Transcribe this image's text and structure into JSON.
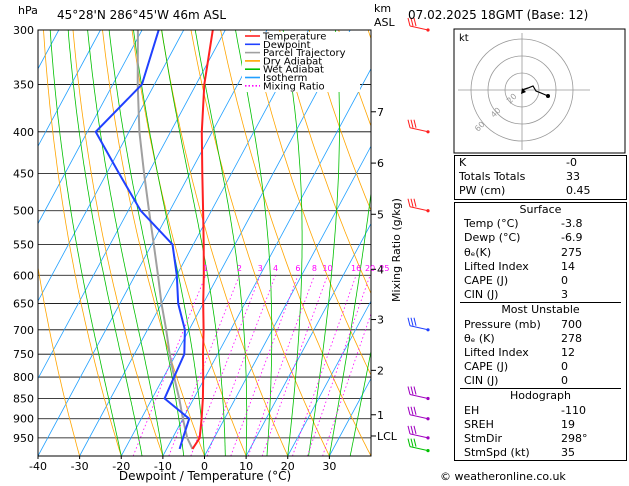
{
  "header": {
    "location": "45°28'N  286°45'W  46m  ASL",
    "datetime": "07.02.2025  18GMT  (Base: 12)",
    "hpa_label": "hPa",
    "km_label": "km",
    "asl_label": "ASL"
  },
  "chart_data": {
    "type": "skew-t",
    "xlabel": "Dewpoint / Temperature (°C)",
    "ylabel": "Mixing Ratio (g/kg)",
    "x_range": [
      -40,
      40
    ],
    "x_ticks": [
      -40,
      -30,
      -20,
      -10,
      0,
      10,
      20,
      30
    ],
    "pressure_range": [
      300,
      1000
    ],
    "pressure_ticks": [
      300,
      350,
      400,
      450,
      500,
      550,
      600,
      650,
      700,
      750,
      800,
      850,
      900,
      950
    ],
    "km_ticks": [
      {
        "label": "7",
        "p": 378
      },
      {
        "label": "6",
        "p": 437
      },
      {
        "label": "5",
        "p": 505
      },
      {
        "label": "4",
        "p": 590
      },
      {
        "label": "3",
        "p": 680
      },
      {
        "label": "2",
        "p": 785
      },
      {
        "label": "1",
        "p": 890
      },
      {
        "label": "LCL",
        "p": 945
      }
    ],
    "mixing_ratio_labels": [
      "1",
      "2",
      "3",
      "4",
      "6",
      "8",
      "10",
      "16",
      "20",
      "25"
    ],
    "mixing_ratio_values": [
      1,
      2,
      3,
      4,
      6,
      8,
      10,
      16,
      20,
      25
    ],
    "legend": [
      {
        "name": "Temperature",
        "color": "#ff2020",
        "style": "solid"
      },
      {
        "name": "Dewpoint",
        "color": "#2040ff",
        "style": "solid"
      },
      {
        "name": "Parcel Trajectory",
        "color": "#a0a0a0",
        "style": "solid"
      },
      {
        "name": "Dry Adiabat",
        "color": "#ffa500",
        "style": "solid"
      },
      {
        "name": "Wet Adiabat",
        "color": "#00c000",
        "style": "solid"
      },
      {
        "name": "Isotherm",
        "color": "#20a0ff",
        "style": "solid"
      },
      {
        "name": "Mixing Ratio",
        "color": "#ff00ff",
        "style": "dotted"
      }
    ],
    "temperature": [
      [
        980,
        -3.8
      ],
      [
        950,
        -3.5
      ],
      [
        900,
        -5.5
      ],
      [
        850,
        -7.8
      ],
      [
        800,
        -10.5
      ],
      [
        750,
        -13.5
      ],
      [
        700,
        -16.5
      ],
      [
        650,
        -20
      ],
      [
        600,
        -23.5
      ],
      [
        550,
        -27.5
      ],
      [
        500,
        -32
      ],
      [
        450,
        -37
      ],
      [
        400,
        -42.5
      ],
      [
        350,
        -48
      ],
      [
        300,
        -53
      ]
    ],
    "dewpoint": [
      [
        980,
        -6.9
      ],
      [
        950,
        -7.5
      ],
      [
        900,
        -8.5
      ],
      [
        850,
        -17
      ],
      [
        800,
        -17.5
      ],
      [
        750,
        -18
      ],
      [
        700,
        -21
      ],
      [
        650,
        -26
      ],
      [
        600,
        -30
      ],
      [
        550,
        -35
      ],
      [
        500,
        -47
      ],
      [
        450,
        -57
      ],
      [
        400,
        -68
      ],
      [
        350,
        -63
      ],
      [
        300,
        -66
      ]
    ],
    "parcel": [
      [
        980,
        -3.8
      ],
      [
        950,
        -6.5
      ],
      [
        900,
        -10
      ],
      [
        850,
        -13.5
      ],
      [
        800,
        -17.5
      ],
      [
        750,
        -21.5
      ],
      [
        700,
        -25.5
      ],
      [
        650,
        -30
      ],
      [
        600,
        -34.5
      ],
      [
        550,
        -39.5
      ],
      [
        500,
        -45
      ],
      [
        450,
        -51
      ],
      [
        400,
        -57.5
      ],
      [
        350,
        -64
      ],
      [
        300,
        -71
      ]
    ],
    "wind_barbs": [
      {
        "p": 300,
        "color": "#ff2020"
      },
      {
        "p": 400,
        "color": "#ff2020"
      },
      {
        "p": 500,
        "color": "#ff2020"
      },
      {
        "p": 700,
        "color": "#2040ff"
      },
      {
        "p": 850,
        "color": "#a000c0"
      },
      {
        "p": 900,
        "color": "#a000c0"
      },
      {
        "p": 950,
        "color": "#a000c0"
      },
      {
        "p": 985,
        "color": "#00c000"
      }
    ],
    "hodograph": {
      "unit_label": "kt",
      "ring_labels": [
        "20",
        "40",
        "60"
      ]
    }
  },
  "indices": {
    "rows": [
      {
        "label": "K",
        "value": "-0"
      },
      {
        "label": "Totals Totals",
        "value": "33"
      },
      {
        "label": "PW (cm)",
        "value": "0.45"
      }
    ]
  },
  "surface": {
    "title": "Surface",
    "rows": [
      {
        "label": "Temp (°C)",
        "value": "-3.8"
      },
      {
        "label": "Dewp (°C)",
        "value": "-6.9"
      },
      {
        "label": "θₑ(K)",
        "value": "275"
      },
      {
        "label": "Lifted Index",
        "value": "14"
      },
      {
        "label": "CAPE (J)",
        "value": "0"
      },
      {
        "label": "CIN (J)",
        "value": "3"
      }
    ]
  },
  "most_unstable": {
    "title": "Most Unstable",
    "rows": [
      {
        "label": "Pressure (mb)",
        "value": "700"
      },
      {
        "label": "θₑ (K)",
        "value": "278"
      },
      {
        "label": "Lifted Index",
        "value": "12"
      },
      {
        "label": "CAPE (J)",
        "value": "0"
      },
      {
        "label": "CIN (J)",
        "value": "0"
      }
    ]
  },
  "hodograph_table": {
    "title": "Hodograph",
    "rows": [
      {
        "label": "EH",
        "value": "-110"
      },
      {
        "label": "SREH",
        "value": "19"
      },
      {
        "label": "StmDir",
        "value": "298°"
      },
      {
        "label": "StmSpd (kt)",
        "value": "35"
      }
    ]
  },
  "credit": "© weatheronline.co.uk"
}
